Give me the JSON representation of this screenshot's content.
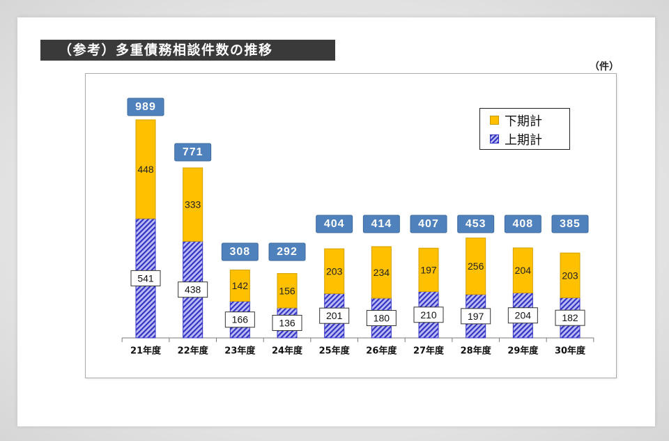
{
  "colors": {
    "title_bar": "#3a3a3a",
    "lower_series": "#ffc000",
    "upper_series_fill": "#bcbcf4",
    "upper_series_hatch": "#3434c4",
    "total_box": "#4f81bd"
  },
  "chart_data": {
    "type": "bar",
    "stacked": true,
    "title": "（参考）多重債務相談件数の推移",
    "unit": "（件）",
    "categories": [
      "21年度",
      "22年度",
      "23年度",
      "24年度",
      "25年度",
      "26年度",
      "27年度",
      "28年度",
      "29年度",
      "30年度"
    ],
    "series": [
      {
        "name": "上期計",
        "values": [
          541,
          438,
          166,
          136,
          201,
          180,
          210,
          197,
          204,
          182
        ]
      },
      {
        "name": "下期計",
        "values": [
          448,
          333,
          142,
          156,
          203,
          234,
          197,
          256,
          204,
          203
        ]
      }
    ],
    "totals": [
      989,
      771,
      308,
      292,
      404,
      414,
      407,
      453,
      408,
      385
    ],
    "y_axis_visible": false,
    "grid": false,
    "legend_position": "top-right",
    "data_labels": true
  }
}
